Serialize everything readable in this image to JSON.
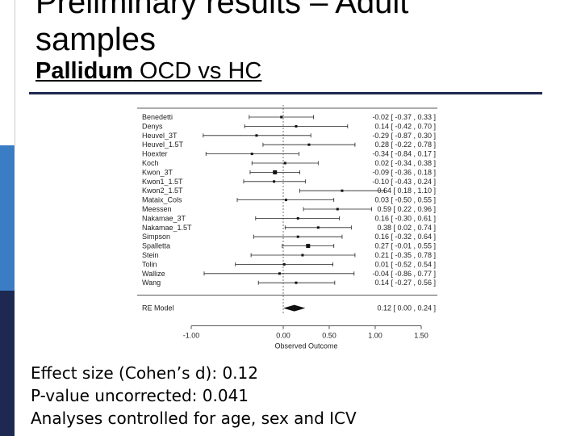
{
  "slide": {
    "title_line1": "Preliminary results – Adult",
    "title_line2": "samples",
    "subtitle_bold": "Pallidum",
    "subtitle_rest": " OCD vs HC"
  },
  "chart_data": {
    "type": "forest",
    "xlabel": "Observed Outcome",
    "x_ticks": [
      "-1.00",
      "0.00",
      "0.50",
      "1.00",
      "1.50"
    ],
    "studies": [
      {
        "name": "Benedetti",
        "est": -0.02,
        "lo": -0.37,
        "hi": 0.33,
        "label": "-0.02 [ -0.37 , 0.33 ]"
      },
      {
        "name": "Denys",
        "est": 0.14,
        "lo": -0.42,
        "hi": 0.7,
        "label": "0.14 [ -0.42 , 0.70 ]"
      },
      {
        "name": "Heuvel_3T",
        "est": -0.29,
        "lo": -0.87,
        "hi": 0.3,
        "label": "-0.29 [ -0.87 , 0.30 ]"
      },
      {
        "name": "Heuvel_1.5T",
        "est": 0.28,
        "lo": -0.22,
        "hi": 0.78,
        "label": "0.28 [ -0.22 , 0.78 ]"
      },
      {
        "name": "Hoexter",
        "est": -0.34,
        "lo": -0.84,
        "hi": 0.17,
        "label": "-0.34 [ -0.84 , 0.17 ]"
      },
      {
        "name": "Koch",
        "est": 0.02,
        "lo": -0.34,
        "hi": 0.38,
        "label": "0.02 [ -0.34 , 0.38 ]"
      },
      {
        "name": "Kwon_3T",
        "est": -0.09,
        "lo": -0.36,
        "hi": 0.18,
        "label": "-0.09 [ -0.36 , 0.18 ]"
      },
      {
        "name": "Kwon1_1.5T",
        "est": -0.1,
        "lo": -0.43,
        "hi": 0.24,
        "label": "-0.10 [ -0.43 , 0.24 ]"
      },
      {
        "name": "Kwon2_1.5T",
        "est": 0.64,
        "lo": 0.18,
        "hi": 1.1,
        "label": "0.64 [ 0.18 , 1.10 ]"
      },
      {
        "name": "Mataix_Cols",
        "est": 0.03,
        "lo": -0.5,
        "hi": 0.55,
        "label": "0.03 [ -0.50 , 0.55 ]"
      },
      {
        "name": "Meessen",
        "est": 0.59,
        "lo": 0.22,
        "hi": 0.96,
        "label": "0.59 [ 0.22 , 0.96 ]"
      },
      {
        "name": "Nakamae_3T",
        "est": 0.16,
        "lo": -0.3,
        "hi": 0.61,
        "label": "0.16 [ -0.30 , 0.61 ]"
      },
      {
        "name": "Nakamae_1.5T",
        "est": 0.38,
        "lo": 0.02,
        "hi": 0.74,
        "label": "0.38 [ 0.02 , 0.74 ]"
      },
      {
        "name": "Simpson",
        "est": 0.16,
        "lo": -0.32,
        "hi": 0.64,
        "label": "0.16 [ -0.32 , 0.64 ]"
      },
      {
        "name": "Spalletta",
        "est": 0.27,
        "lo": -0.01,
        "hi": 0.55,
        "label": "0.27 [ -0.01 , 0.55 ]"
      },
      {
        "name": "Stein",
        "est": 0.21,
        "lo": -0.35,
        "hi": 0.78,
        "label": "0.21 [ -0.35 , 0.78 ]"
      },
      {
        "name": "Tolin",
        "est": 0.01,
        "lo": -0.52,
        "hi": 0.54,
        "label": "0.01 [ -0.52 , 0.54 ]"
      },
      {
        "name": "Wallize",
        "est": -0.04,
        "lo": -0.86,
        "hi": 0.77,
        "label": "-0.04 [ -0.86 , 0.77 ]"
      },
      {
        "name": "Wang",
        "est": 0.14,
        "lo": -0.27,
        "hi": 0.56,
        "label": "0.14 [ -0.27 , 0.56 ]"
      }
    ],
    "summary": {
      "name": "RE Model",
      "est": 0.12,
      "lo": 0.0,
      "hi": 0.24,
      "label": "0.12 [ 0.00 , 0.24 ]"
    },
    "xlim": [
      -1.0,
      1.5
    ]
  },
  "notes": {
    "effect_size": "Effect size (Cohen’s d): 0.12",
    "p_value": "P-value uncorrected: 0.041",
    "controls": "Analyses controlled for age, sex and ICV"
  }
}
